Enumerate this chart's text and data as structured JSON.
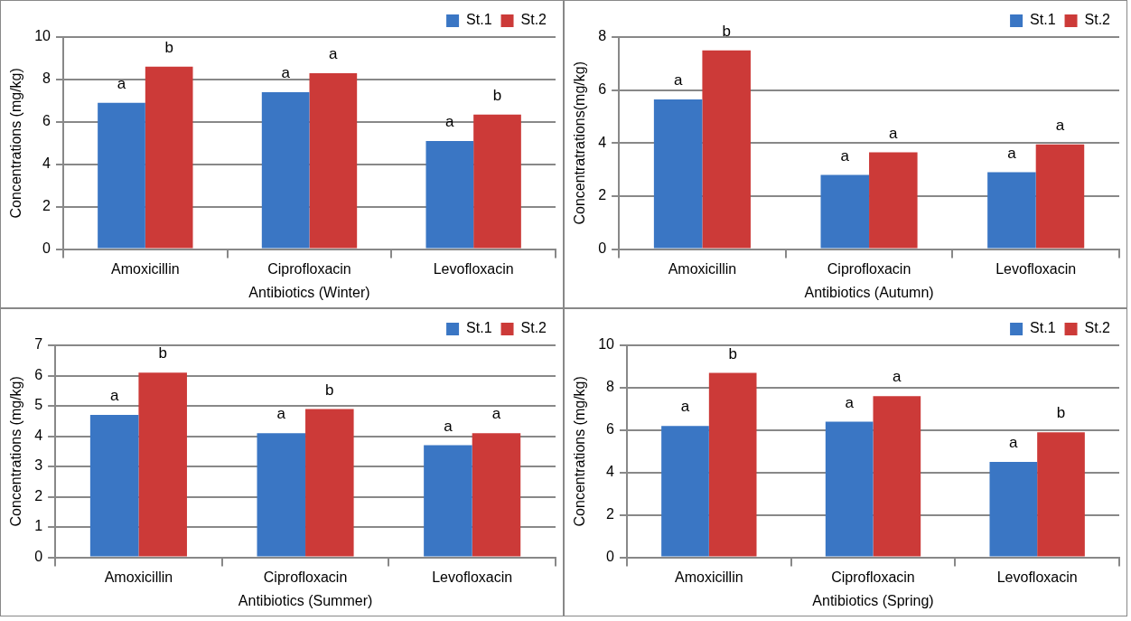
{
  "chart_data": [
    {
      "type": "bar",
      "xlabel": "Antibiotics (Winter)",
      "ylabel": "Concentrations (mg/kg)",
      "categories": [
        "Amoxicillin",
        "Ciprofloxacin",
        "Levofloxacin"
      ],
      "ylim": [
        0,
        10
      ],
      "yticks": [
        0,
        2,
        4,
        6,
        8,
        10
      ],
      "grid": "y",
      "legend": "top right",
      "series": [
        {
          "name": "St.1",
          "color": "#3a76c4",
          "values": [
            6.9,
            7.4,
            5.1
          ],
          "value_labels": [
            "a",
            "a",
            "a"
          ]
        },
        {
          "name": "St.2",
          "color": "#cc3a38",
          "values": [
            8.6,
            8.3,
            6.35
          ],
          "value_labels": [
            "b",
            "a",
            "b"
          ]
        }
      ]
    },
    {
      "type": "bar",
      "xlabel": "Antibiotics (Autumn)",
      "ylabel": "Concentratrations(mg/kg)",
      "categories": [
        "Amoxicillin",
        "Ciprofloxacin",
        "Levofloxacin"
      ],
      "ylim": [
        0,
        8
      ],
      "yticks": [
        0,
        2,
        4,
        6,
        8
      ],
      "grid": "y",
      "legend": "top right",
      "series": [
        {
          "name": "St.1",
          "color": "#3a76c4",
          "values": [
            5.65,
            2.8,
            2.9
          ],
          "value_labels": [
            "a",
            "a",
            "a"
          ]
        },
        {
          "name": "St.2",
          "color": "#cc3a38",
          "values": [
            7.5,
            3.65,
            3.95
          ],
          "value_labels": [
            "b",
            "a",
            "a"
          ]
        }
      ]
    },
    {
      "type": "bar",
      "xlabel": "Antibiotics (Summer)",
      "ylabel": "Concentrations (mg/kg)",
      "categories": [
        "Amoxicillin",
        "Ciprofloxacin",
        "Levofloxacin"
      ],
      "ylim": [
        0,
        7
      ],
      "yticks": [
        0,
        1,
        2,
        3,
        4,
        5,
        6,
        7
      ],
      "grid": "y",
      "legend": "top right",
      "series": [
        {
          "name": "St.1",
          "color": "#3a76c4",
          "values": [
            4.7,
            4.1,
            3.7
          ],
          "value_labels": [
            "a",
            "a",
            "a"
          ]
        },
        {
          "name": "St.2",
          "color": "#cc3a38",
          "values": [
            6.1,
            4.9,
            4.1
          ],
          "value_labels": [
            "b",
            "b",
            "a"
          ]
        }
      ]
    },
    {
      "type": "bar",
      "xlabel": "Antibiotics (Spring)",
      "ylabel": "Concentrations (mg/kg)",
      "categories": [
        "Amoxicillin",
        "Ciprofloxacin",
        "Levofloxacin"
      ],
      "ylim": [
        0,
        10
      ],
      "yticks": [
        0,
        2,
        4,
        6,
        8,
        10
      ],
      "grid": "y",
      "legend": "top right",
      "series": [
        {
          "name": "St.1",
          "color": "#3a76c4",
          "values": [
            6.2,
            6.4,
            4.5
          ],
          "value_labels": [
            "a",
            "a",
            "a"
          ]
        },
        {
          "name": "St.2",
          "color": "#cc3a38",
          "values": [
            8.7,
            7.6,
            5.9
          ],
          "value_labels": [
            "b",
            "a",
            "b"
          ]
        }
      ]
    }
  ]
}
